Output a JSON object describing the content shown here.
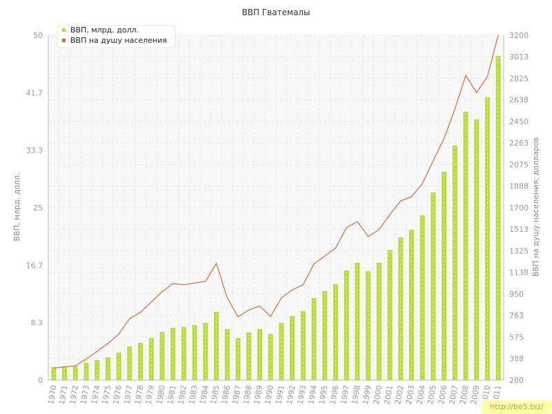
{
  "chart_data": {
    "type": "bar+line",
    "title": "ВВП Гватемалы",
    "ylabel_left": "ВВП, млрд. долл.",
    "ylabel_right": "ВВП на душу населения, долларов",
    "left_ticks": [
      "0",
      "8.3",
      "16.7",
      "25",
      "33.3",
      "41.7",
      "50"
    ],
    "left_tick_values": [
      0,
      8.333,
      16.667,
      25,
      33.333,
      41.667,
      50
    ],
    "right_ticks": [
      "200",
      "388",
      "575",
      "763",
      "950",
      "1138",
      "1325",
      "1513",
      "1700",
      "1888",
      "2075",
      "2263",
      "2450",
      "2638",
      "2825",
      "3013",
      "3200"
    ],
    "left_range": [
      0,
      50
    ],
    "right_range": [
      200,
      3200
    ],
    "grid": true,
    "legend_position": "top-left",
    "categories": [
      "1970",
      "1971",
      "1972",
      "1973",
      "1974",
      "1975",
      "1976",
      "1977",
      "1978",
      "1979",
      "1980",
      "1981",
      "1982",
      "1983",
      "1984",
      "1985",
      "1986",
      "1987",
      "1988",
      "1989",
      "1990",
      "1991",
      "1992",
      "1993",
      "1994",
      "1995",
      "1996",
      "1997",
      "1998",
      "1999",
      "2000",
      "2001",
      "2002",
      "2003",
      "2004",
      "2005",
      "2006",
      "2007",
      "2008",
      "2009",
      "2010",
      "2011"
    ],
    "series": [
      {
        "name": "ВВП, млрд. долл.",
        "axis": "left",
        "kind": "bar",
        "color": "#b8dc3c",
        "values": [
          1.9,
          2.0,
          2.0,
          2.5,
          2.9,
          3.3,
          4.0,
          4.9,
          5.4,
          6.1,
          7.0,
          7.6,
          7.7,
          8.0,
          8.3,
          9.9,
          7.4,
          6.1,
          6.9,
          7.4,
          6.7,
          8.3,
          9.3,
          10.0,
          11.9,
          12.9,
          13.9,
          15.9,
          17.0,
          15.8,
          17.0,
          18.9,
          20.7,
          21.8,
          23.9,
          27.2,
          30.2,
          34.0,
          38.9,
          37.8,
          41.0,
          47.0
        ]
      },
      {
        "name": "ВВП на душу населения",
        "axis": "right",
        "kind": "line",
        "color": "#e06830",
        "values": [
          305,
          315,
          325,
          385,
          450,
          520,
          600,
          735,
          790,
          880,
          970,
          1040,
          1030,
          1045,
          1060,
          1215,
          915,
          750,
          810,
          845,
          755,
          915,
          985,
          1030,
          1210,
          1280,
          1350,
          1525,
          1580,
          1450,
          1510,
          1640,
          1760,
          1795,
          1910,
          2110,
          2300,
          2560,
          2850,
          2700,
          2840,
          3200
        ]
      }
    ]
  },
  "watermark": "http://be5.biz/"
}
